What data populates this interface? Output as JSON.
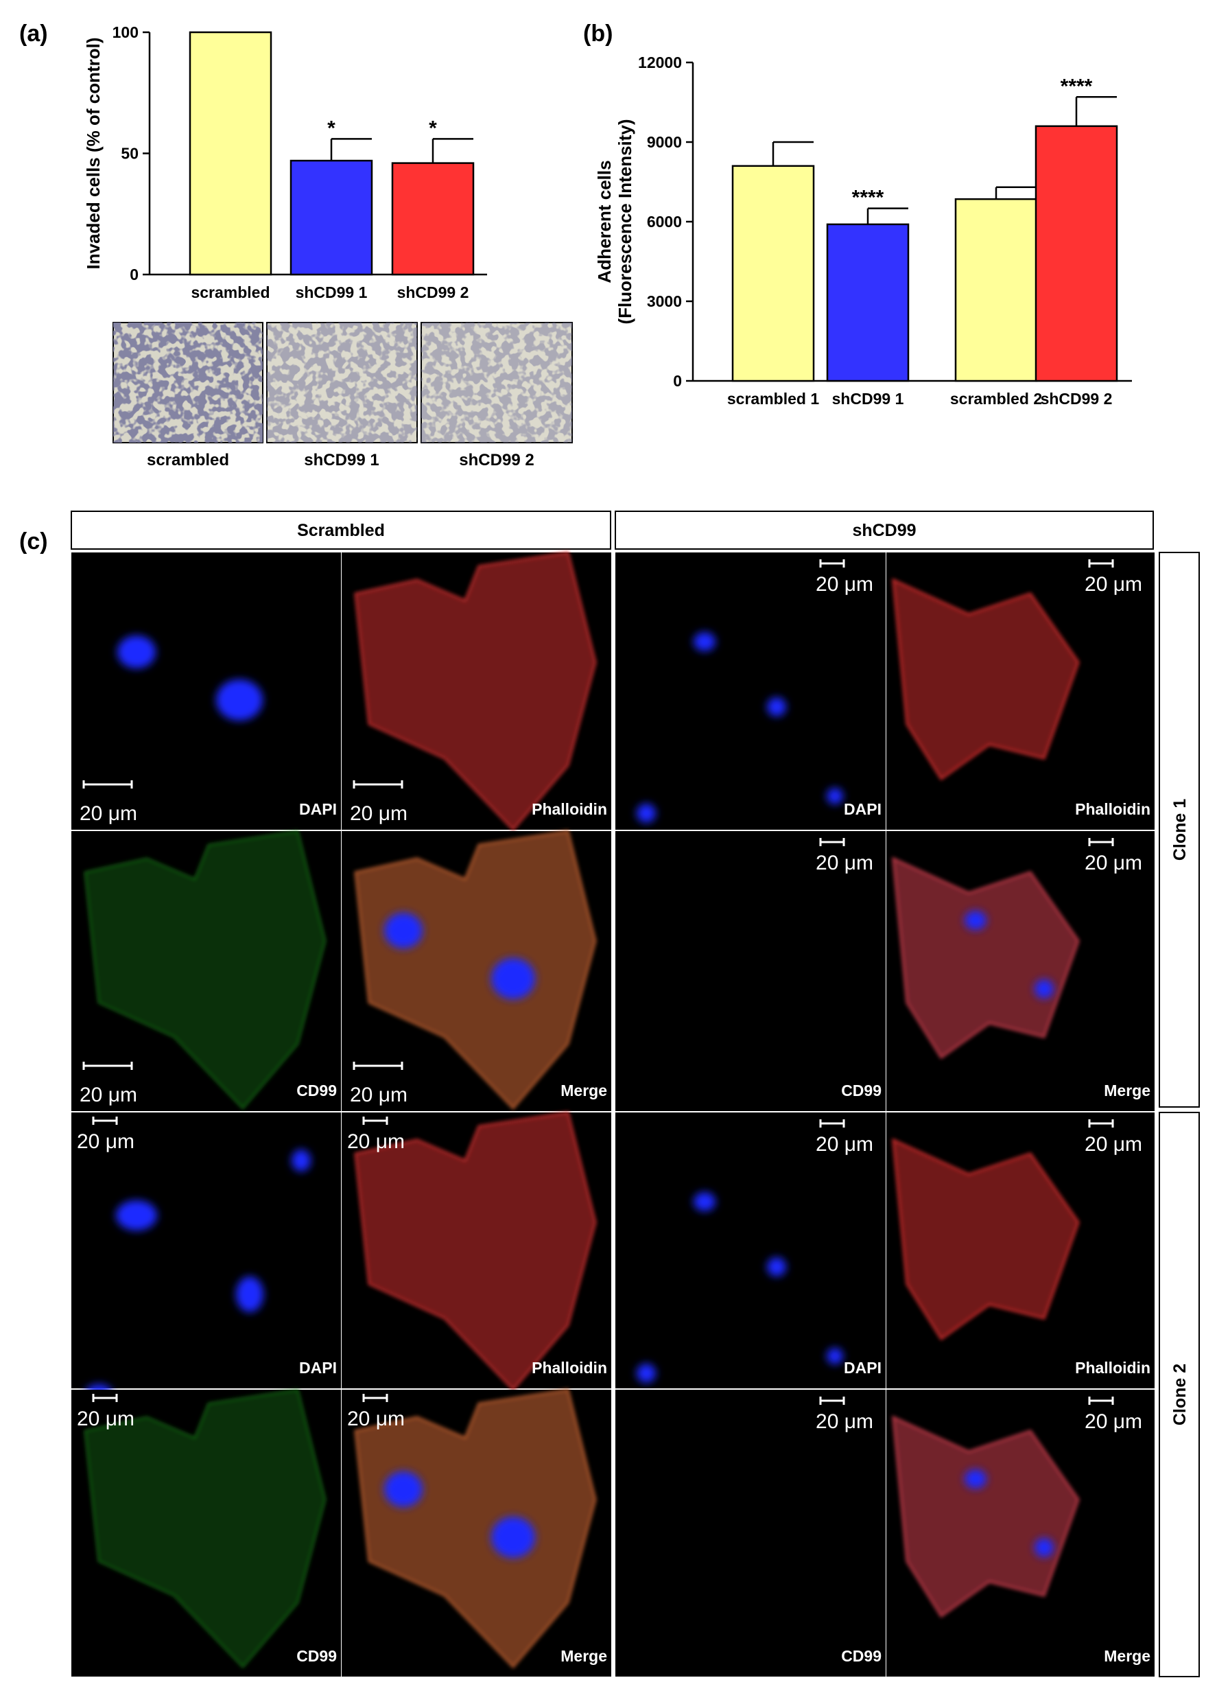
{
  "panel_a": {
    "label": "(a)",
    "thumbnail_labels": [
      "scrambled",
      "shCD99 1",
      "shCD99 2"
    ]
  },
  "panel_b": {
    "label": "(b)"
  },
  "panel_c": {
    "label": "(c)",
    "headers": [
      "Scrambled",
      "shCD99"
    ],
    "clones": [
      "Clone 1",
      "Clone 2"
    ],
    "scale_bar": "20 μm",
    "stains": [
      "DAPI",
      "Phalloidin",
      "CD99",
      "Merge"
    ]
  },
  "chart_data": [
    {
      "type": "bar",
      "categories": [
        "scrambled",
        "shCD99 1",
        "shCD99 2"
      ],
      "values": [
        100,
        47,
        46
      ],
      "errors": [
        0,
        9,
        10
      ],
      "significance": [
        "",
        "*",
        "*"
      ],
      "colors": [
        "#ffff99",
        "#3333ff",
        "#ff3333"
      ],
      "ylabel": "Invaded cells (% of control)",
      "ylim": [
        0,
        100
      ],
      "yticks": [
        0,
        50,
        100
      ]
    },
    {
      "type": "bar",
      "categories": [
        "scrambled 1",
        "shCD99 1",
        "scrambled 2",
        "shCD99 2"
      ],
      "values": [
        8100,
        5900,
        6850,
        9600
      ],
      "errors": [
        900,
        600,
        450,
        1100
      ],
      "significance": [
        "",
        "****",
        "",
        "****"
      ],
      "colors": [
        "#ffff99",
        "#3333ff",
        "#ffff99",
        "#ff3333"
      ],
      "ylabel": "Adherent cells",
      "ylabel2": "(Fluorescence Intensity)",
      "ylim": [
        0,
        12000
      ],
      "yticks": [
        0,
        3000,
        6000,
        9000,
        12000
      ]
    }
  ]
}
